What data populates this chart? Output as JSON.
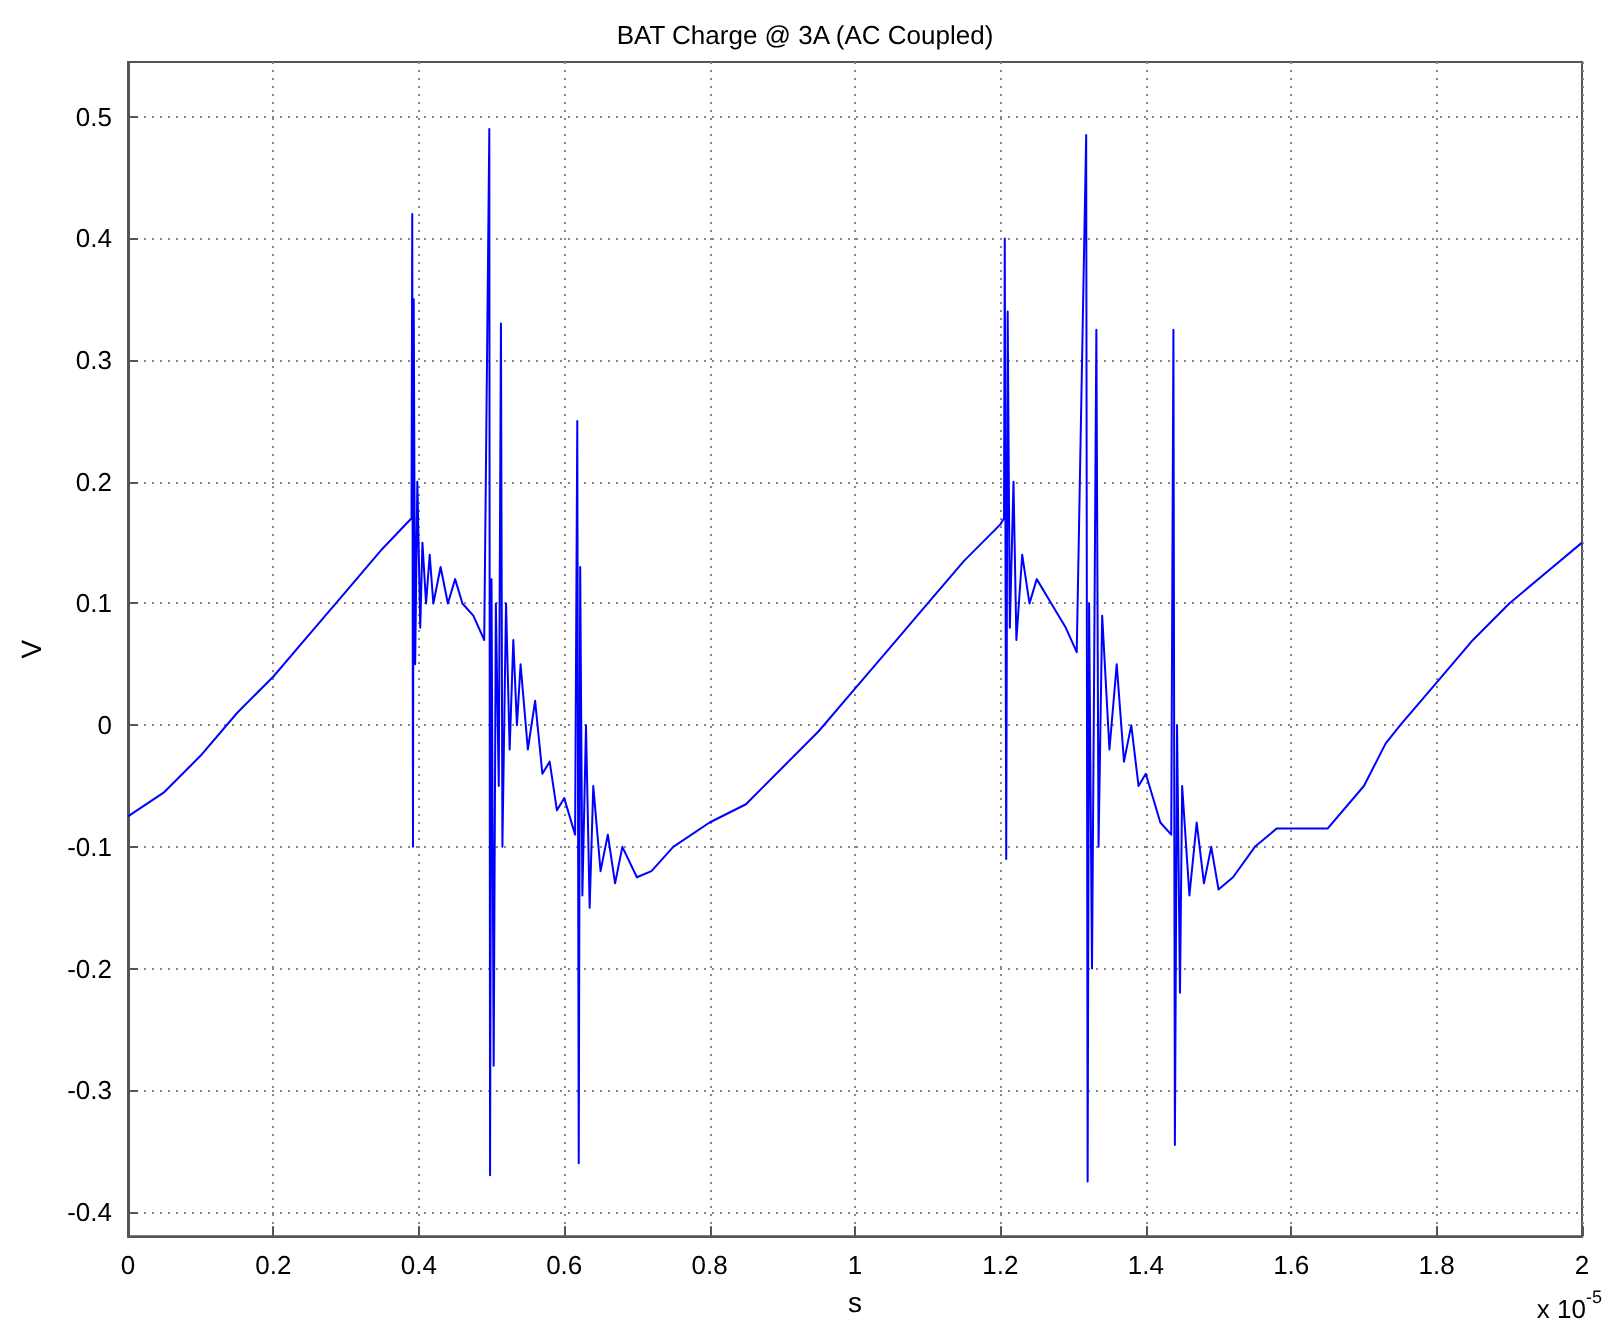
{
  "chart_data": {
    "type": "line",
    "title": "BAT Charge @ 3A (AC Coupled)",
    "xlabel": "s",
    "ylabel": "V",
    "annotations": [
      "x 10$^{-5}$"
    ],
    "x": [
      0,
      0.05,
      0.1,
      0.15,
      0.2,
      0.25,
      0.3,
      0.35,
      0.39,
      0.391,
      0.392,
      0.393,
      0.395,
      0.398,
      0.402,
      0.405,
      0.41,
      0.415,
      0.42,
      0.43,
      0.44,
      0.45,
      0.46,
      0.475,
      0.49,
      0.497,
      0.498,
      0.5,
      0.503,
      0.506,
      0.51,
      0.513,
      0.515,
      0.52,
      0.525,
      0.53,
      0.535,
      0.54,
      0.55,
      0.56,
      0.57,
      0.58,
      0.59,
      0.6,
      0.615,
      0.618,
      0.62,
      0.622,
      0.625,
      0.63,
      0.635,
      0.64,
      0.65,
      0.66,
      0.67,
      0.68,
      0.7,
      0.72,
      0.75,
      0.8,
      0.85,
      0.9,
      0.95,
      1.0,
      1.05,
      1.1,
      1.15,
      1.2,
      1.205,
      1.206,
      1.208,
      1.21,
      1.213,
      1.218,
      1.222,
      1.23,
      1.24,
      1.25,
      1.27,
      1.29,
      1.305,
      1.318,
      1.32,
      1.322,
      1.326,
      1.329,
      1.332,
      1.335,
      1.34,
      1.35,
      1.36,
      1.37,
      1.38,
      1.39,
      1.4,
      1.42,
      1.435,
      1.438,
      1.44,
      1.443,
      1.447,
      1.45,
      1.46,
      1.47,
      1.48,
      1.49,
      1.5,
      1.52,
      1.55,
      1.58,
      1.6,
      1.65,
      1.7,
      1.73,
      1.75,
      1.8,
      1.85,
      1.9,
      1.95,
      2.0
    ],
    "series": [
      {
        "color": "#0000ff",
        "values": [
          -0.075,
          -0.055,
          -0.025,
          0.01,
          0.04,
          0.075,
          0.11,
          0.145,
          0.17,
          0.42,
          -0.1,
          0.35,
          0.05,
          0.2,
          0.08,
          0.15,
          0.1,
          0.14,
          0.1,
          0.13,
          0.1,
          0.12,
          0.1,
          0.09,
          0.07,
          0.49,
          -0.37,
          0.12,
          -0.28,
          0.1,
          -0.05,
          0.33,
          -0.1,
          0.1,
          -0.02,
          0.07,
          0.0,
          0.05,
          -0.02,
          0.02,
          -0.04,
          -0.03,
          -0.07,
          -0.06,
          -0.09,
          0.25,
          -0.36,
          0.13,
          -0.14,
          0.0,
          -0.15,
          -0.05,
          -0.12,
          -0.09,
          -0.13,
          -0.1,
          -0.125,
          -0.12,
          -0.1,
          -0.08,
          -0.065,
          -0.035,
          -0.005,
          0.03,
          0.065,
          0.1,
          0.135,
          0.165,
          0.17,
          0.4,
          -0.11,
          0.34,
          0.08,
          0.2,
          0.07,
          0.14,
          0.1,
          0.12,
          0.1,
          0.08,
          0.06,
          0.485,
          -0.375,
          0.1,
          -0.2,
          0.05,
          0.325,
          -0.1,
          0.09,
          -0.02,
          0.05,
          -0.03,
          0.0,
          -0.05,
          -0.04,
          -0.08,
          -0.09,
          0.325,
          -0.345,
          0.0,
          -0.22,
          -0.05,
          -0.14,
          -0.08,
          -0.13,
          -0.1,
          -0.135,
          -0.125,
          -0.1,
          -0.085,
          -0.085,
          -0.085,
          -0.05,
          -0.015,
          0.0,
          0.035,
          0.07,
          0.1,
          0.125,
          0.15
        ]
      }
    ],
    "xlim": [
      0,
      2
    ],
    "xticks": [
      0,
      0.2,
      0.4,
      0.6,
      0.8,
      1,
      1.2,
      1.4,
      1.6,
      1.8,
      2
    ],
    "ylim": [
      -0.42,
      0.545
    ],
    "yticks": [
      -0.4,
      -0.3,
      -0.2,
      -0.1,
      0,
      0.1,
      0.2,
      0.3,
      0.4,
      0.5
    ],
    "grid": true,
    "marker": "none",
    "line_style": "solid"
  }
}
